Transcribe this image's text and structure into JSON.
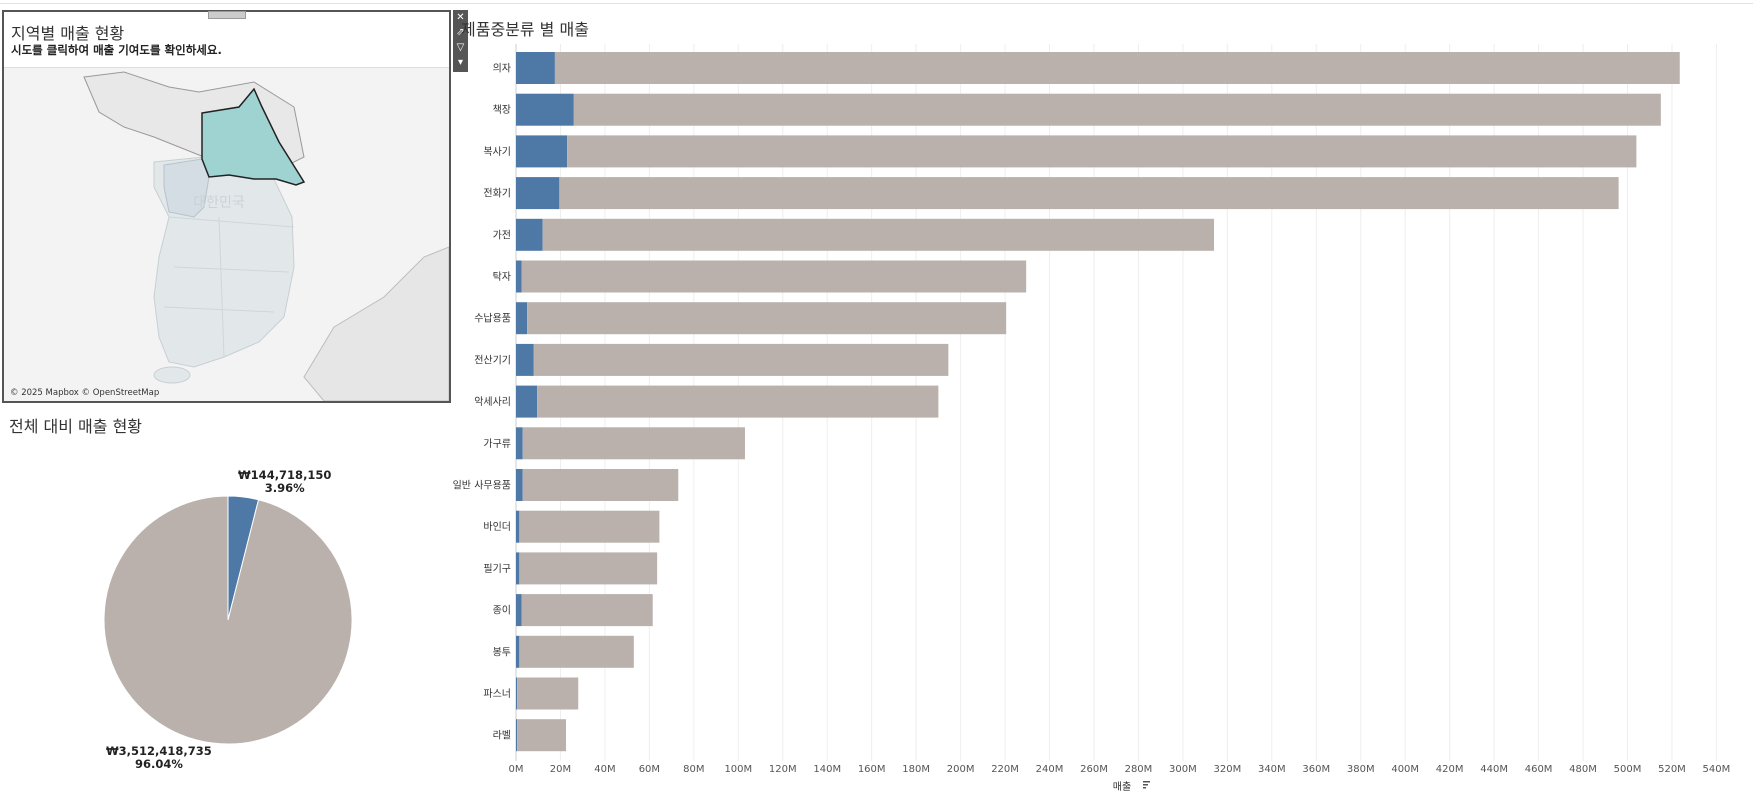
{
  "map_panel": {
    "title": "지역별 매출 현황",
    "subtitle": "시도를 클릭하여 매출 기여도를 확인하세요.",
    "map_label": "대한민국",
    "credit": "© 2025 Mapbox © OpenStreetMap",
    "highlight_color": "#9fd3d1"
  },
  "toolbar": {
    "close_icon": "close-icon",
    "export_icon": "export-icon",
    "filter_icon": "filter-icon",
    "menu_icon": "chevron-down-icon"
  },
  "pie_panel": {
    "title": "전체 대비 매출 현황",
    "selected_value": "₩144,718,150",
    "selected_pct": "3.96%",
    "rest_value": "₩3,512,418,735",
    "rest_pct": "96.04%"
  },
  "chart_data": [
    {
      "type": "pie",
      "slices": [
        {
          "value": 144718150,
          "percent": 3.96,
          "color": "#4e79a7"
        },
        {
          "value": 3512418735,
          "percent": 96.04,
          "color": "#bab0ac"
        }
      ]
    },
    {
      "type": "bar",
      "orientation": "horizontal",
      "stacked": true,
      "title": "제품중분류 별 매출",
      "xlabel": "매출",
      "xlim": [
        0,
        540
      ],
      "x_unit": "M",
      "x_ticks": [
        "0M",
        "20M",
        "40M",
        "60M",
        "80M",
        "100M",
        "120M",
        "140M",
        "160M",
        "180M",
        "200M",
        "220M",
        "240M",
        "260M",
        "280M",
        "300M",
        "320M",
        "340M",
        "360M",
        "380M",
        "400M",
        "420M",
        "440M",
        "460M",
        "480M",
        "500M",
        "520M",
        "540M"
      ],
      "categories": [
        "의자",
        "책장",
        "복사기",
        "전화기",
        "가전",
        "탁자",
        "수납용품",
        "전산기기",
        "악세사리",
        "가구류",
        "일반 사무용품",
        "바인더",
        "필기구",
        "종이",
        "봉투",
        "파스너",
        "라벨"
      ],
      "series": [
        {
          "color": "#4e79a7",
          "values": [
            17.5,
            26,
            23,
            19.5,
            12,
            2.5,
            5,
            8,
            9.5,
            3,
            3,
            1.5,
            1.5,
            2.5,
            1.5,
            0.5,
            0.5
          ]
        },
        {
          "color": "#bab0ac",
          "values": [
            506,
            489,
            481,
            476.5,
            302,
            227,
            215.5,
            186.5,
            180.5,
            100,
            70,
            63,
            62,
            59,
            51.5,
            27.5,
            22
          ]
        }
      ],
      "grid": true
    }
  ]
}
